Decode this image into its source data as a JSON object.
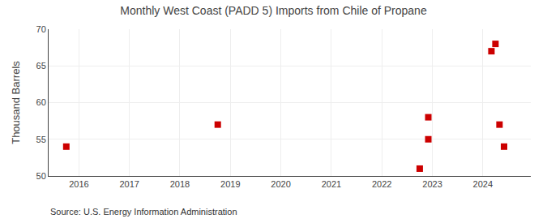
{
  "chart_data": {
    "type": "scatter",
    "title": "Monthly West Coast (PADD 5) Imports from Chile of Propane",
    "y_label": "Thousand Barrels",
    "annotations": [
      "Source: U.S. Energy Information Administration"
    ],
    "x": [
      2015.75,
      2018.75,
      2022.75,
      2022.92,
      2022.92,
      2024.17,
      2024.25,
      2024.33,
      2024.42
    ],
    "values": [
      54,
      57,
      51,
      55,
      58,
      67,
      68,
      57,
      54
    ],
    "color": "#cc0000",
    "marker": "square",
    "xlim": [
      2015.4,
      2024.95
    ],
    "ylim": [
      50,
      70
    ],
    "xticks": [
      2016,
      2017,
      2018,
      2019,
      2020,
      2021,
      2022,
      2023,
      2024
    ],
    "yticks": [
      50,
      55,
      60,
      65,
      70
    ],
    "grid": true
  }
}
